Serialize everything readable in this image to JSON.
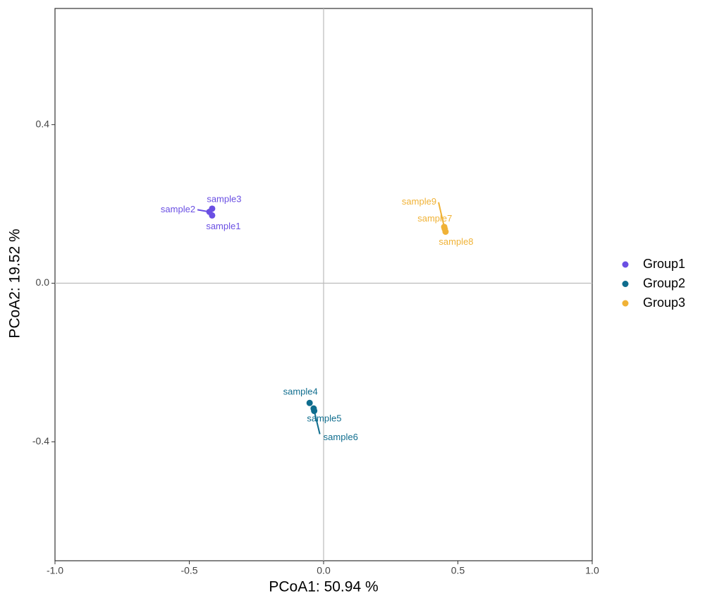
{
  "chart_data": {
    "type": "scatter",
    "xlabel": "PCoA1:  50.94 %",
    "ylabel": "PCoA2:  19.52 %",
    "xlim": [
      -1,
      1
    ],
    "ylim": [
      -0.7,
      0.693
    ],
    "xticks": [
      {
        "value": -1,
        "label": "-1.0"
      },
      -0.5,
      {
        "value": 0,
        "label": "0.0"
      },
      0.5,
      {
        "value": 1,
        "label": "1.0"
      }
    ],
    "yticks": [
      -0.4,
      {
        "value": 0,
        "label": "0.0"
      },
      0.4
    ],
    "series": [
      {
        "name": "Group1",
        "color": "#6a4fe3",
        "labels": [
          "sample1",
          "sample2",
          "sample3"
        ],
        "x": [
          -0.415,
          -0.425,
          -0.415
        ],
        "y": [
          0.171,
          0.18,
          0.188
        ]
      },
      {
        "name": "Group2",
        "color": "#0f6d8e",
        "labels": [
          "sample4",
          "sample5",
          "sample6"
        ],
        "x": [
          -0.052,
          -0.037,
          -0.035
        ],
        "y": [
          -0.302,
          -0.316,
          -0.322
        ]
      },
      {
        "name": "Group3",
        "color": "#f0b236",
        "labels": [
          "sample7",
          "sample8",
          "sample9"
        ],
        "x": [
          0.451,
          0.454,
          0.449
        ],
        "y": [
          0.137,
          0.13,
          0.142
        ]
      }
    ]
  }
}
